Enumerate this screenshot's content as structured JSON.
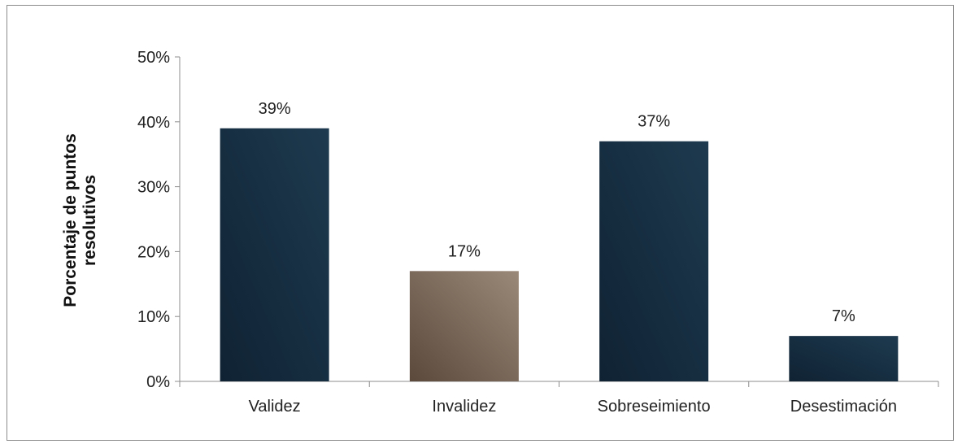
{
  "chart_data": {
    "type": "bar",
    "title": "",
    "xlabel": "",
    "ylabel": [
      "Porcentaje de puntos",
      "resolutivos"
    ],
    "categories": [
      "Validez",
      "Invalidez",
      "Sobreseimiento",
      "Desestimación"
    ],
    "values": [
      39,
      17,
      37,
      7
    ],
    "value_labels": [
      "39%",
      "17%",
      "37%",
      "7%"
    ],
    "ylim": [
      0,
      50
    ],
    "yticks": [
      0,
      10,
      20,
      30,
      40,
      50
    ],
    "ytick_labels": [
      "0%",
      "10%",
      "20%",
      "30%",
      "40%",
      "50%"
    ],
    "grid": false,
    "legend": "none",
    "bar_colors": [
      "dark-navy",
      "taupe",
      "dark-navy",
      "dark-navy"
    ],
    "colors": {
      "dark-navy": [
        "#0f2233",
        "#1e3a4f"
      ],
      "taupe": [
        "#5b4a3c",
        "#9a8878"
      ],
      "axis": "#8c8c8c"
    }
  }
}
